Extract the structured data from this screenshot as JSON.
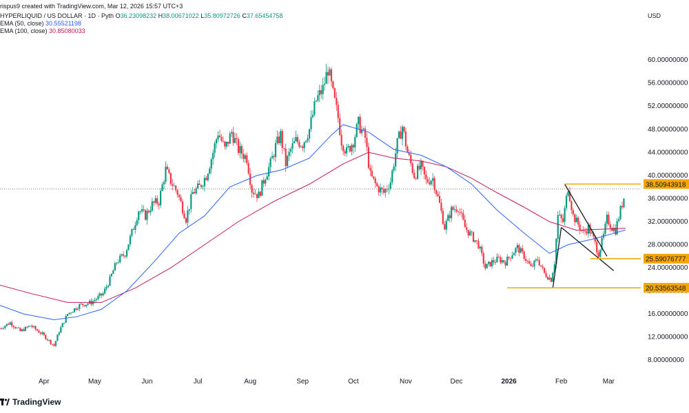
{
  "header": {
    "created": "rispus9 created with TradingView.com, Mar 12, 2026 15:57 UTC+3",
    "symbol": "HYPERLIQUID / US DOLLAR · 1D · Pyth",
    "ohlc": {
      "o_label": "O",
      "o": "36.23098232",
      "h_label": "H",
      "h": "38.00671022",
      "l_label": "L",
      "l": "35.80972726",
      "c_label": "C",
      "c": "37.65454758"
    },
    "ema50": {
      "label": "EMA (50, close)",
      "value": "30.55521198"
    },
    "ema100": {
      "label": "EMA (100, close)",
      "value": "30.85080033"
    }
  },
  "currency": "USD",
  "footer": {
    "brand": "TradingView",
    "logo": "tradingview-logo"
  },
  "colors": {
    "up": "#089981",
    "down": "#f23645",
    "ema50": "#2962ff",
    "ema100": "#c2185b",
    "hline": "#f7a600",
    "pattern": "#131722",
    "last_price_line": "#787b86"
  },
  "chart_data": {
    "type": "candlestick",
    "timeframe": "1D",
    "ylim": [
      6.0,
      63.0
    ],
    "y_ticks": [
      {
        "value": 8,
        "label": "8.00000000"
      },
      {
        "value": 12,
        "label": "12.00000000"
      },
      {
        "value": 16,
        "label": "16.00000000"
      },
      {
        "value": 20,
        "label": "20.00000000"
      },
      {
        "value": 24,
        "label": "24.00000000"
      },
      {
        "value": 28,
        "label": "28.00000000"
      },
      {
        "value": 32,
        "label": "32.00000000"
      },
      {
        "value": 36,
        "label": "36.00000000"
      },
      {
        "value": 40,
        "label": "40.00000000"
      },
      {
        "value": 44,
        "label": "44.00000000"
      },
      {
        "value": 48,
        "label": "48.00000000"
      },
      {
        "value": 52,
        "label": "52.00000000"
      },
      {
        "value": 56,
        "label": "56.00000000"
      },
      {
        "value": 60,
        "label": "60.00000000"
      }
    ],
    "x_range": [
      "2025-03-06",
      "2026-03-20"
    ],
    "x_ticks": [
      {
        "date": "2025-04-01",
        "label": "Apr",
        "bold": false
      },
      {
        "date": "2025-05-01",
        "label": "May",
        "bold": false
      },
      {
        "date": "2025-06-01",
        "label": "Jun",
        "bold": false
      },
      {
        "date": "2025-07-01",
        "label": "Jul",
        "bold": false
      },
      {
        "date": "2025-08-01",
        "label": "Aug",
        "bold": false
      },
      {
        "date": "2025-09-01",
        "label": "Sep",
        "bold": false
      },
      {
        "date": "2025-10-01",
        "label": "Oct",
        "bold": false
      },
      {
        "date": "2025-11-01",
        "label": "Nov",
        "bold": false
      },
      {
        "date": "2025-12-01",
        "label": "Dec",
        "bold": false
      },
      {
        "date": "2026-01-01",
        "label": "2026",
        "bold": true
      },
      {
        "date": "2026-02-01",
        "label": "Feb",
        "bold": false
      },
      {
        "date": "2026-03-01",
        "label": "Mar",
        "bold": false
      }
    ],
    "price_path": [
      [
        "2025-03-06",
        13.5
      ],
      [
        "2025-03-12",
        14.5
      ],
      [
        "2025-03-18",
        13.0
      ],
      [
        "2025-03-24",
        14.0
      ],
      [
        "2025-03-31",
        12.5
      ],
      [
        "2025-04-07",
        10.5
      ],
      [
        "2025-04-10",
        13.0
      ],
      [
        "2025-04-15",
        16.0
      ],
      [
        "2025-04-22",
        17.5
      ],
      [
        "2025-04-29",
        18.0
      ],
      [
        "2025-05-06",
        19.5
      ],
      [
        "2025-05-10",
        22.0
      ],
      [
        "2025-05-14",
        25.0
      ],
      [
        "2025-05-19",
        26.5
      ],
      [
        "2025-05-24",
        31.0
      ],
      [
        "2025-05-27",
        34.0
      ],
      [
        "2025-05-31",
        33.0
      ],
      [
        "2025-06-04",
        35.0
      ],
      [
        "2025-06-08",
        35.5
      ],
      [
        "2025-06-12",
        41.0
      ],
      [
        "2025-06-15",
        39.0
      ],
      [
        "2025-06-19",
        37.0
      ],
      [
        "2025-06-24",
        32.5
      ],
      [
        "2025-06-28",
        37.0
      ],
      [
        "2025-07-02",
        38.0
      ],
      [
        "2025-07-06",
        40.0
      ],
      [
        "2025-07-10",
        44.0
      ],
      [
        "2025-07-13",
        47.5
      ],
      [
        "2025-07-17",
        44.5
      ],
      [
        "2025-07-21",
        47.5
      ],
      [
        "2025-07-25",
        44.5
      ],
      [
        "2025-07-30",
        43.0
      ],
      [
        "2025-08-02",
        37.5
      ],
      [
        "2025-08-06",
        36.5
      ],
      [
        "2025-08-10",
        40.0
      ],
      [
        "2025-08-13",
        42.0
      ],
      [
        "2025-08-16",
        45.0
      ],
      [
        "2025-08-19",
        47.0
      ],
      [
        "2025-08-22",
        42.0
      ],
      [
        "2025-08-25",
        44.5
      ],
      [
        "2025-08-28",
        46.0
      ],
      [
        "2025-09-01",
        45.5
      ],
      [
        "2025-09-05",
        48.0
      ],
      [
        "2025-09-09",
        53.0
      ],
      [
        "2025-09-13",
        55.0
      ],
      [
        "2025-09-16",
        58.5
      ],
      [
        "2025-09-19",
        54.0
      ],
      [
        "2025-09-22",
        50.0
      ],
      [
        "2025-09-24",
        46.0
      ],
      [
        "2025-09-27",
        44.0
      ],
      [
        "2025-10-01",
        46.0
      ],
      [
        "2025-10-04",
        49.0
      ],
      [
        "2025-10-08",
        46.5
      ],
      [
        "2025-10-11",
        40.0
      ],
      [
        "2025-10-15",
        38.0
      ],
      [
        "2025-10-19",
        37.0
      ],
      [
        "2025-10-23",
        39.0
      ],
      [
        "2025-10-27",
        45.5
      ],
      [
        "2025-10-30",
        48.5
      ],
      [
        "2025-11-02",
        44.0
      ],
      [
        "2025-11-06",
        40.0
      ],
      [
        "2025-11-10",
        41.5
      ],
      [
        "2025-11-13",
        39.0
      ],
      [
        "2025-11-17",
        39.5
      ],
      [
        "2025-11-21",
        35.0
      ],
      [
        "2025-11-24",
        31.0
      ],
      [
        "2025-11-28",
        34.0
      ],
      [
        "2025-12-02",
        34.5
      ],
      [
        "2025-12-06",
        31.0
      ],
      [
        "2025-12-10",
        29.5
      ],
      [
        "2025-12-14",
        28.0
      ],
      [
        "2025-12-18",
        24.0
      ],
      [
        "2025-12-22",
        25.0
      ],
      [
        "2025-12-26",
        25.5
      ],
      [
        "2025-12-30",
        25.0
      ],
      [
        "2026-01-03",
        26.5
      ],
      [
        "2026-01-06",
        27.5
      ],
      [
        "2026-01-10",
        26.0
      ],
      [
        "2026-01-14",
        24.0
      ],
      [
        "2026-01-18",
        25.5
      ],
      [
        "2026-01-22",
        23.0
      ],
      [
        "2026-01-26",
        22.0
      ],
      [
        "2026-01-28",
        25.0
      ],
      [
        "2026-01-30",
        33.0
      ],
      [
        "2026-02-02",
        32.0
      ],
      [
        "2026-02-05",
        38.0
      ],
      [
        "2026-02-08",
        33.0
      ],
      [
        "2026-02-11",
        31.5
      ],
      [
        "2026-02-14",
        30.0
      ],
      [
        "2026-02-17",
        31.0
      ],
      [
        "2026-02-20",
        29.0
      ],
      [
        "2026-02-23",
        26.5
      ],
      [
        "2026-02-26",
        29.5
      ],
      [
        "2026-02-28",
        32.5
      ],
      [
        "2026-03-03",
        31.0
      ],
      [
        "2026-03-05",
        30.5
      ],
      [
        "2026-03-08",
        34.0
      ],
      [
        "2026-03-10",
        36.2
      ],
      [
        "2026-03-11",
        37.65
      ]
    ],
    "ema50_path": [
      [
        "2025-03-06",
        17.5
      ],
      [
        "2025-03-20",
        16.0
      ],
      [
        "2025-04-07",
        15.0
      ],
      [
        "2025-04-20",
        15.5
      ],
      [
        "2025-05-05",
        16.8
      ],
      [
        "2025-05-20",
        20.0
      ],
      [
        "2025-06-05",
        25.0
      ],
      [
        "2025-06-20",
        30.0
      ],
      [
        "2025-07-05",
        33.0
      ],
      [
        "2025-07-20",
        38.0
      ],
      [
        "2025-08-05",
        40.0
      ],
      [
        "2025-08-20",
        41.0
      ],
      [
        "2025-09-05",
        43.0
      ],
      [
        "2025-09-18",
        47.0
      ],
      [
        "2025-09-25",
        48.8
      ],
      [
        "2025-10-10",
        47.5
      ],
      [
        "2025-10-25",
        44.5
      ],
      [
        "2025-11-10",
        43.5
      ],
      [
        "2025-11-25",
        41.5
      ],
      [
        "2025-12-10",
        38.5
      ],
      [
        "2025-12-25",
        34.0
      ],
      [
        "2026-01-10",
        30.0
      ],
      [
        "2026-01-25",
        26.5
      ],
      [
        "2026-02-05",
        28.0
      ],
      [
        "2026-02-20",
        29.0
      ],
      [
        "2026-03-11",
        30.55
      ]
    ],
    "ema100_path": [
      [
        "2025-03-06",
        21.0
      ],
      [
        "2025-03-25",
        19.5
      ],
      [
        "2025-04-15",
        18.0
      ],
      [
        "2025-05-05",
        18.0
      ],
      [
        "2025-05-25",
        20.5
      ],
      [
        "2025-06-15",
        24.0
      ],
      [
        "2025-07-05",
        28.0
      ],
      [
        "2025-07-25",
        32.0
      ],
      [
        "2025-08-15",
        35.5
      ],
      [
        "2025-09-05",
        38.5
      ],
      [
        "2025-09-25",
        42.0
      ],
      [
        "2025-10-10",
        44.0
      ],
      [
        "2025-10-25",
        43.0
      ],
      [
        "2025-11-10",
        42.5
      ],
      [
        "2025-11-25",
        41.5
      ],
      [
        "2025-12-10",
        39.5
      ],
      [
        "2025-12-25",
        37.0
      ],
      [
        "2026-01-10",
        34.5
      ],
      [
        "2026-01-25",
        32.0
      ],
      [
        "2026-02-10",
        30.5
      ],
      [
        "2026-03-11",
        30.85
      ]
    ],
    "horizontal_levels": [
      {
        "value": 38.50943918,
        "label": "38.50943918",
        "from": "2026-02-03",
        "to": "2026-03-20"
      },
      {
        "value": 25.59076777,
        "label": "25.59076777",
        "from": "2026-02-18",
        "to": "2026-03-20"
      },
      {
        "value": 20.53563548,
        "label": "20.53563548",
        "from": "2025-12-31",
        "to": "2026-03-20"
      }
    ],
    "last_price": 37.65454758,
    "pattern_lines": [
      {
        "from": [
          "2026-01-27",
          20.5
        ],
        "to": [
          "2026-02-01",
          31.0
        ]
      },
      {
        "from": [
          "2026-02-03",
          38.5
        ],
        "to": [
          "2026-02-28",
          26.0
        ]
      },
      {
        "from": [
          "2026-02-01",
          31.0
        ],
        "to": [
          "2026-03-04",
          23.5
        ]
      }
    ]
  }
}
